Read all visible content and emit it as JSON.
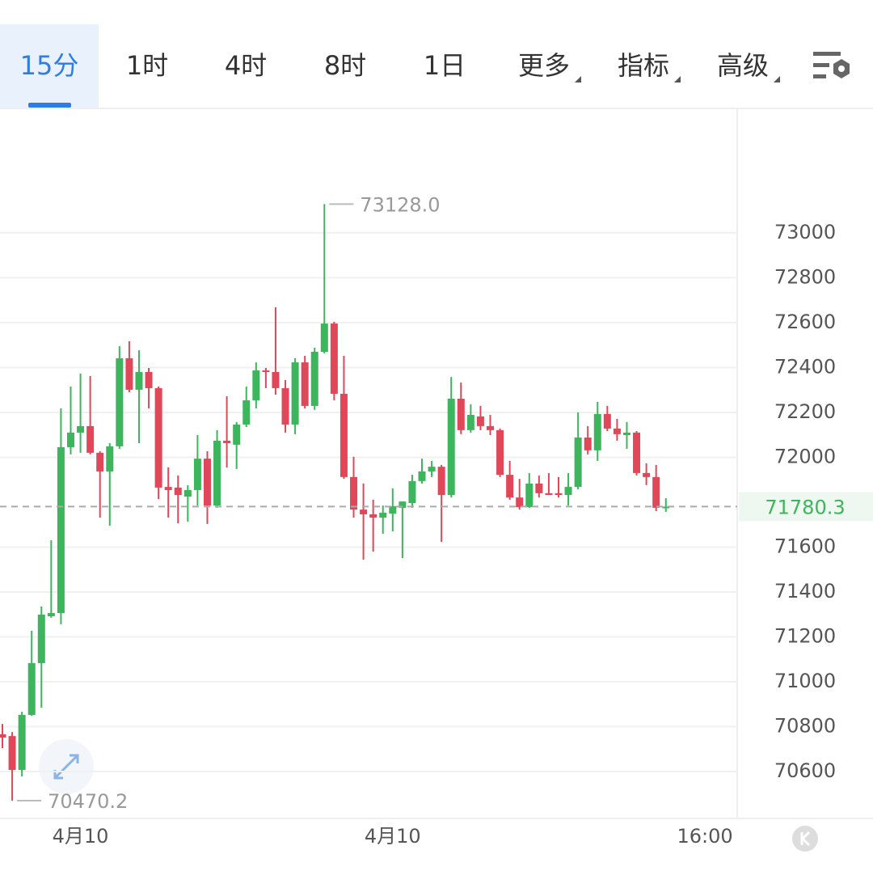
{
  "tabs": [
    "15分",
    "1时",
    "4时",
    "8时",
    "1日",
    "更多",
    "指标",
    "高级"
  ],
  "active_tab": 0,
  "chart_data": {
    "type": "candlestick",
    "up_color": "#3cb55d",
    "down_color": "#e0485a",
    "categories": [
      null,
      null,
      null,
      null,
      null,
      null,
      null,
      null,
      "4月10",
      null,
      null,
      null,
      null,
      null,
      null,
      null,
      null,
      null,
      null,
      null,
      null,
      null,
      null,
      null,
      null,
      null,
      null,
      null,
      null,
      null,
      null,
      null,
      null,
      null,
      null,
      null,
      null,
      null,
      null,
      null,
      "4月10",
      null,
      null,
      null,
      null,
      null,
      null,
      null,
      null,
      null,
      null,
      null,
      null,
      null,
      null,
      null,
      null,
      null,
      null,
      null,
      null,
      null,
      null,
      null,
      null,
      null,
      null,
      null,
      null,
      null,
      null,
      null,
      "16:00"
    ],
    "open": [
      70766,
      70758,
      70607,
      70852,
      71083,
      71292,
      71306,
      72045,
      72110,
      72139,
      72020,
      71937,
      72049,
      72441,
      72301,
      72380,
      72308,
      71868,
      71865,
      71825,
      71854,
      71994,
      71785,
      72074,
      72056,
      72146,
      72254,
      72387,
      72380,
      72308,
      72146,
      72423,
      72229,
      72470,
      72596,
      72283,
      71912,
      71767,
      71746,
      71731,
      71749,
      71775,
      71796,
      71894,
      71937,
      71958,
      71832,
      72261,
      72121,
      72182,
      72139,
      72121,
      71922,
      71821,
      71778,
      71883,
      71840,
      71840,
      71832,
      71868,
      72088,
      72031,
      72193,
      72128,
      72099,
      72110,
      71930,
      71912,
      71775,
      null,
      null,
      null,
      null
    ],
    "high": [
      70812,
      70776,
      70866,
      71227,
      71335,
      71630,
      72218,
      72315,
      72373,
      72362,
      72027,
      72063,
      72495,
      72517,
      72477,
      72398,
      72315,
      71955,
      71919,
      71876,
      72099,
      72027,
      72121,
      72272,
      72157,
      72315,
      72423,
      72398,
      72668,
      72344,
      72441,
      72452,
      72488,
      73128,
      72604,
      72452,
      72002,
      71883,
      71811,
      71785,
      71861,
      71803,
      71922,
      71994,
      71984,
      71966,
      72358,
      72333,
      72236,
      72229,
      72189,
      72128,
      71984,
      71904,
      71930,
      71919,
      71930,
      71912,
      71930,
      72200,
      72139,
      72247,
      72229,
      72171,
      72157,
      72117,
      71973,
      71966,
      71818,
      null,
      null,
      null,
      null
    ],
    "low": [
      70704,
      70470.2,
      70578,
      70848,
      70884,
      71285,
      71256,
      72013,
      72020,
      72013,
      71731,
      71695,
      72038,
      72290,
      72063,
      72218,
      71814,
      71731,
      71706,
      71713,
      71785,
      71703,
      71775,
      71955,
      71948,
      72135,
      72218,
      72308,
      72279,
      72110,
      72103,
      72218,
      72211,
      72463,
      72254,
      71904,
      71731,
      71544,
      71580,
      71659,
      71670,
      71551,
      71775,
      71883,
      71912,
      71623,
      71821,
      72103,
      72110,
      72121,
      72099,
      71912,
      71811,
      71767,
      71775,
      71821,
      71832,
      71821,
      71785,
      71858,
      72013,
      71984,
      72117,
      72074,
      72038,
      71919,
      71876,
      71760,
      71757,
      null,
      null,
      null,
      null
    ],
    "close": [
      70751,
      70607,
      70852,
      71083,
      71299,
      71306,
      72045,
      72110,
      72139,
      72020,
      71937,
      72049,
      72441,
      72301,
      72380,
      72308,
      71865,
      71854,
      71832,
      71854,
      71994,
      71785,
      72074,
      72063,
      72146,
      72254,
      72387,
      72380,
      72308,
      72146,
      72423,
      72229,
      72470,
      72596,
      72283,
      71912,
      71767,
      71746,
      71731,
      71753,
      71782,
      71803,
      71894,
      71937,
      71958,
      71832,
      72261,
      72121,
      72189,
      72139,
      72121,
      71922,
      71821,
      71778,
      71883,
      71840,
      71832,
      71832,
      71868,
      72088,
      72031,
      72193,
      72128,
      72103,
      72110,
      71930,
      71912,
      71775,
      71780.3,
      null,
      null,
      null,
      null
    ],
    "ylim": [
      70391,
      73551
    ],
    "yticks": [
      70600,
      70800,
      71000,
      71200,
      71400,
      71600,
      72000,
      72200,
      72400,
      72600,
      72800,
      73000
    ],
    "grid": true,
    "last_price": 71780.3,
    "max_label": {
      "value": 73128,
      "label": "73128.0"
    },
    "min_label": {
      "value": 70470.2,
      "label": "70470.2"
    }
  }
}
